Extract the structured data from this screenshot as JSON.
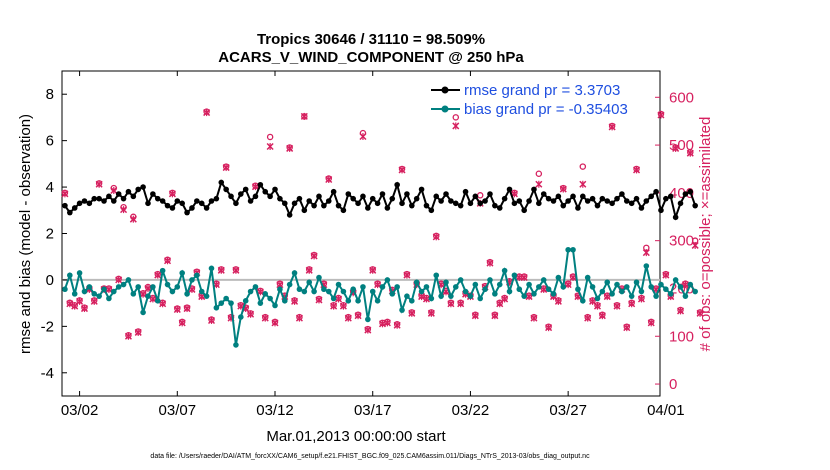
{
  "chart_data": {
    "type": "line",
    "title_line1": "Tropics 30646 / 31110 = 98.509%",
    "title_line2": "ACARS_V_WIND_COMPONENT @ 250 hPa",
    "xlabel": "Mar.01,2013 00:00:00 start",
    "ylabel_left": "rmse and bias (model - observation)",
    "ylabel_right": "# of obs: o=possible; ×=assimilated",
    "footnote": "data file: /Users/raeder/DAI/ATM_forcXX/CAM6_setup/f.e21.FHIST_BGC.f09_025.CAM6assim.011/Diags_NTrS_2013-03/obs_diag_output.nc",
    "xlim": [
      0.6,
      31.2
    ],
    "ylim_left": [
      -5,
      9
    ],
    "ylim_right": [
      -25,
      655
    ],
    "left_ticks": [
      -4,
      -2,
      0,
      2,
      4,
      6,
      8
    ],
    "left_tick_labels": [
      "-4",
      "-2",
      "0",
      "2",
      "4",
      "6",
      "8"
    ],
    "right_ticks": [
      0,
      100,
      200,
      300,
      400,
      500,
      600
    ],
    "right_tick_labels": [
      "0",
      "100",
      "200",
      "300",
      "400",
      "500",
      "600"
    ],
    "x_ticks": [
      1.5,
      6.5,
      11.5,
      16.5,
      21.5,
      26.5,
      31.5
    ],
    "x_tick_labels": [
      "03/02",
      "03/07",
      "03/12",
      "03/17",
      "03/22",
      "03/27",
      "04/01"
    ],
    "zero_line": 0,
    "legend": [
      {
        "name": "rmse grand pr = 3.3703",
        "color": "#000000"
      },
      {
        "name": "bias grand pr = -0.35403",
        "color": "#008080"
      }
    ],
    "colors": {
      "rmse": "#000000",
      "bias": "#008080",
      "nobs": "#d6205f",
      "zero": "#bbbbbb",
      "legend_text": "#1f4fe0"
    },
    "x_start": 0.75,
    "x_step": 0.25,
    "series": [
      {
        "name": "rmse",
        "axis": "left",
        "values": [
          3.2,
          2.9,
          3.1,
          3.3,
          3.4,
          3.3,
          3.5,
          3.5,
          3.4,
          3.6,
          3.4,
          3.7,
          3.5,
          3.8,
          3.6,
          3.9,
          4.0,
          3.3,
          3.7,
          3.5,
          3.4,
          3.2,
          3.1,
          3.4,
          3.3,
          2.9,
          3.1,
          3.4,
          3.3,
          3.1,
          3.4,
          3.5,
          4.2,
          3.9,
          3.6,
          3.3,
          3.7,
          3.9,
          3.4,
          3.6,
          4.1,
          3.8,
          3.6,
          3.9,
          3.5,
          3.3,
          2.8,
          3.3,
          3.5,
          3.0,
          3.4,
          3.2,
          3.6,
          3.2,
          3.4,
          3.8,
          3.2,
          3.0,
          3.7,
          3.5,
          3.3,
          3.6,
          3.1,
          3.5,
          3.3,
          3.7,
          3.1,
          3.5,
          4.1,
          3.3,
          3.7,
          3.2,
          3.5,
          3.9,
          3.2,
          3.0,
          3.6,
          3.4,
          3.7,
          3.4,
          3.3,
          3.2,
          3.8,
          3.3,
          3.6,
          3.3,
          3.4,
          3.7,
          3.2,
          3.1,
          3.5,
          3.9,
          3.3,
          3.4,
          3.0,
          3.4,
          3.9,
          3.3,
          3.7,
          3.5,
          3.4,
          3.6,
          3.2,
          3.4,
          3.6,
          3.1,
          3.6,
          3.4,
          3.5,
          3.2,
          3.5,
          3.4,
          3.3,
          3.5,
          3.7,
          3.4,
          3.3,
          3.5,
          3.1,
          3.4,
          3.6,
          3.8,
          3.0,
          3.5,
          3.6,
          2.7,
          3.3,
          3.7,
          3.8,
          3.2
        ]
      },
      {
        "name": "bias",
        "axis": "left",
        "values": [
          -0.4,
          0.2,
          -0.6,
          0.3,
          -0.5,
          -0.3,
          -0.6,
          -0.7,
          -0.4,
          -0.8,
          -0.5,
          -0.3,
          -0.2,
          0.0,
          -0.6,
          -0.3,
          -1.4,
          -0.7,
          -0.3,
          -0.9,
          0.4,
          -0.2,
          -0.5,
          -0.3,
          0.3,
          -0.6,
          0.0,
          0.2,
          -0.5,
          -0.7,
          0.5,
          -1.2,
          -1.0,
          -0.8,
          -1.0,
          -2.8,
          -1.6,
          -0.9,
          -0.5,
          -0.3,
          -1.0,
          -0.6,
          -0.8,
          -1.1,
          -0.4,
          -0.9,
          -0.2,
          0.3,
          -0.4,
          -0.5,
          -0.1,
          -0.5,
          0.1,
          -0.4,
          -0.5,
          -0.8,
          -0.2,
          -0.5,
          -0.9,
          -0.4,
          -0.9,
          -0.3,
          -1.7,
          -0.5,
          -0.9,
          -0.3,
          0.0,
          -0.6,
          -0.3,
          -1.3,
          -0.7,
          -0.9,
          -0.1,
          -0.5,
          -0.3,
          -0.8,
          0.2,
          -0.7,
          -0.1,
          -0.7,
          -0.3,
          0.0,
          -0.5,
          -0.7,
          -0.2,
          -0.8,
          -0.4,
          0.0,
          -0.6,
          -0.2,
          0.4,
          -0.5,
          0.2,
          -0.4,
          -0.7,
          -0.2,
          -0.6,
          -0.3,
          0.0,
          -0.4,
          -0.6,
          0.1,
          -0.3,
          1.3,
          1.3,
          -0.4,
          -0.9,
          0.1,
          -0.3,
          -0.8,
          -0.5,
          -0.1,
          -0.6,
          -0.2,
          -0.5,
          -0.3,
          -0.7,
          -0.1,
          -0.5,
          0.6,
          -0.3,
          -0.7,
          -0.2,
          -0.4,
          -0.6,
          0.0,
          -0.3,
          -0.7,
          -0.2,
          -0.5
        ]
      },
      {
        "name": "obs_possible",
        "axis": "right",
        "values": [
          400,
          170,
          165,
          175,
          160,
          200,
          175,
          420,
          200,
          200,
          410,
          220,
          370,
          102,
          350,
          110,
          190,
          203,
          180,
          230,
          170,
          260,
          400,
          158,
          130,
          160,
          200,
          235,
          185,
          570,
          135,
          210,
          240,
          455,
          140,
          240,
          165,
          160,
          148,
          415,
          195,
          140,
          517,
          130,
          210,
          185,
          495,
          175,
          140,
          560,
          240,
          270,
          178,
          210,
          430,
          165,
          180,
          165,
          140,
          193,
          145,
          525,
          115,
          240,
          210,
          128,
          130,
          197,
          125,
          450,
          230,
          150,
          210,
          185,
          180,
          150,
          310,
          210,
          195,
          170,
          558,
          170,
          190,
          185,
          145,
          395,
          205,
          255,
          145,
          170,
          180,
          215,
          400,
          225,
          225,
          185,
          140,
          440,
          200,
          120,
          185,
          175,
          410,
          210,
          225,
          185,
          455,
          140,
          175,
          165,
          145,
          185,
          540,
          165,
          200,
          120,
          170,
          450,
          180,
          285,
          130,
          200,
          565,
          230,
          185,
          495,
          155,
          210,
          485,
          300,
          150
        ]
      },
      {
        "name": "obs_assimilated",
        "axis": "right",
        "values": [
          398,
          168,
          163,
          173,
          158,
          198,
          173,
          418,
          198,
          198,
          405,
          218,
          365,
          100,
          345,
          108,
          188,
          200,
          178,
          228,
          168,
          258,
          398,
          156,
          128,
          158,
          198,
          233,
          183,
          568,
          133,
          208,
          238,
          453,
          138,
          238,
          163,
          158,
          146,
          413,
          193,
          138,
          497,
          128,
          208,
          183,
          493,
          173,
          138,
          560,
          238,
          268,
          176,
          208,
          428,
          163,
          178,
          163,
          138,
          191,
          143,
          518,
          113,
          238,
          208,
          126,
          128,
          195,
          123,
          448,
          228,
          148,
          208,
          183,
          178,
          148,
          308,
          208,
          193,
          168,
          540,
          168,
          188,
          183,
          143,
          378,
          203,
          253,
          143,
          168,
          178,
          213,
          398,
          223,
          223,
          183,
          138,
          418,
          198,
          118,
          183,
          173,
          408,
          208,
          223,
          183,
          418,
          138,
          173,
          163,
          143,
          183,
          538,
          163,
          198,
          118,
          168,
          448,
          178,
          275,
          128,
          198,
          563,
          228,
          183,
          493,
          153,
          208,
          483,
          290,
          148
        ]
      }
    ]
  }
}
